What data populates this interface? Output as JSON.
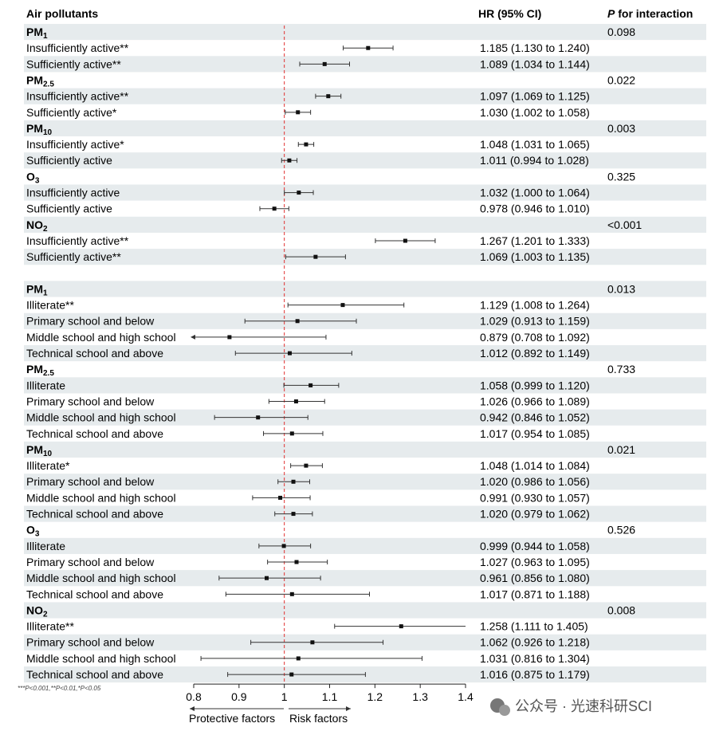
{
  "headers": {
    "pollutant": "Air pollutants",
    "hr": "HR (95% CI)",
    "pint_p": "P",
    "pint_rest": " for interaction"
  },
  "footnote": "***P<0.001,**P<0.01,*P<0.05",
  "axis_labels": {
    "protective": "Protective factors",
    "risk": "Risk factors"
  },
  "watermark": "公众号 · 光速科研SCI",
  "chart_data": {
    "type": "forest",
    "reference_line": 1,
    "xlim": [
      0.8,
      1.4
    ],
    "xticks": [
      0.8,
      0.9,
      1,
      1.1,
      1.2,
      1.3,
      1.4
    ],
    "xtick_labels": [
      "0.8",
      "0.9",
      "1",
      "1.1",
      "1.2",
      "1.3",
      "1.4"
    ],
    "rows": [
      {
        "kind": "group",
        "base": "PM",
        "sub": "1",
        "p": "0.098"
      },
      {
        "kind": "item",
        "label": "Insufficiently active**",
        "hr": 1.185,
        "lo": 1.13,
        "hi": 1.24,
        "text": "1.185 (1.130 to 1.240)"
      },
      {
        "kind": "item",
        "label": "Sufficiently active**",
        "hr": 1.089,
        "lo": 1.034,
        "hi": 1.144,
        "text": "1.089 (1.034 to 1.144)"
      },
      {
        "kind": "group",
        "base": "PM",
        "sub": "2.5",
        "p": "0.022"
      },
      {
        "kind": "item",
        "label": "Insufficiently active**",
        "hr": 1.097,
        "lo": 1.069,
        "hi": 1.125,
        "text": "1.097 (1.069 to 1.125)"
      },
      {
        "kind": "item",
        "label": "Sufficiently active*",
        "hr": 1.03,
        "lo": 1.002,
        "hi": 1.058,
        "text": "1.030 (1.002 to 1.058)"
      },
      {
        "kind": "group",
        "base": "PM",
        "sub": "10",
        "p": "0.003"
      },
      {
        "kind": "item",
        "label": "Insufficiently active*",
        "hr": 1.048,
        "lo": 1.031,
        "hi": 1.065,
        "text": "1.048 (1.031 to 1.065)"
      },
      {
        "kind": "item",
        "label": "Sufficiently active",
        "hr": 1.011,
        "lo": 0.994,
        "hi": 1.028,
        "text": "1.011 (0.994 to 1.028)"
      },
      {
        "kind": "group",
        "base": "O",
        "sub": "3",
        "p": "0.325"
      },
      {
        "kind": "item",
        "label": "Insufficiently active",
        "hr": 1.032,
        "lo": 1.0,
        "hi": 1.064,
        "text": "1.032 (1.000 to 1.064)"
      },
      {
        "kind": "item",
        "label": "Sufficiently active",
        "hr": 0.978,
        "lo": 0.946,
        "hi": 1.01,
        "text": "0.978 (0.946 to 1.010)"
      },
      {
        "kind": "group",
        "base": "NO",
        "sub": "2",
        "p": "<0.001"
      },
      {
        "kind": "item",
        "label": "Insufficiently active**",
        "hr": 1.267,
        "lo": 1.201,
        "hi": 1.333,
        "text": "1.267 (1.201 to 1.333)"
      },
      {
        "kind": "item",
        "label": "Sufficiently active**",
        "hr": 1.069,
        "lo": 1.003,
        "hi": 1.135,
        "text": "1.069 (1.003 to 1.135)"
      },
      {
        "kind": "blank"
      },
      {
        "kind": "group",
        "base": "PM",
        "sub": "1",
        "p": "0.013"
      },
      {
        "kind": "item",
        "label": "Illiterate**",
        "hr": 1.129,
        "lo": 1.008,
        "hi": 1.264,
        "text": "1.129 (1.008 to 1.264)"
      },
      {
        "kind": "item",
        "label": "Primary school and below",
        "hr": 1.029,
        "lo": 0.913,
        "hi": 1.159,
        "text": "1.029 (0.913 to 1.159)"
      },
      {
        "kind": "item",
        "label": "Middle school and high school",
        "hr": 0.879,
        "lo": 0.708,
        "hi": 1.092,
        "text": "0.879 (0.708 to 1.092)"
      },
      {
        "kind": "item",
        "label": "Technical school and above",
        "hr": 1.012,
        "lo": 0.892,
        "hi": 1.149,
        "text": "1.012 (0.892 to 1.149)"
      },
      {
        "kind": "group",
        "base": "PM",
        "sub": "2.5",
        "p": "0.733"
      },
      {
        "kind": "item",
        "label": "Illiterate",
        "hr": 1.058,
        "lo": 0.999,
        "hi": 1.12,
        "text": "1.058 (0.999 to 1.120)"
      },
      {
        "kind": "item",
        "label": "Primary school and below",
        "hr": 1.026,
        "lo": 0.966,
        "hi": 1.089,
        "text": "1.026 (0.966 to 1.089)"
      },
      {
        "kind": "item",
        "label": "Middle school and high school",
        "hr": 0.942,
        "lo": 0.846,
        "hi": 1.052,
        "text": "0.942 (0.846 to 1.052)"
      },
      {
        "kind": "item",
        "label": "Technical school and above",
        "hr": 1.017,
        "lo": 0.954,
        "hi": 1.085,
        "text": "1.017 (0.954 to 1.085)"
      },
      {
        "kind": "group",
        "base": "PM",
        "sub": "10",
        "p": "0.021"
      },
      {
        "kind": "item",
        "label": "Illiterate*",
        "hr": 1.048,
        "lo": 1.014,
        "hi": 1.084,
        "text": "1.048 (1.014 to 1.084)"
      },
      {
        "kind": "item",
        "label": "Primary school and below",
        "hr": 1.02,
        "lo": 0.986,
        "hi": 1.056,
        "text": "1.020 (0.986 to 1.056)"
      },
      {
        "kind": "item",
        "label": "Middle school and high school",
        "hr": 0.991,
        "lo": 0.93,
        "hi": 1.057,
        "text": "0.991 (0.930 to 1.057)"
      },
      {
        "kind": "item",
        "label": "Technical school and above",
        "hr": 1.02,
        "lo": 0.979,
        "hi": 1.062,
        "text": "1.020 (0.979 to 1.062)"
      },
      {
        "kind": "group",
        "base": "O",
        "sub": "3",
        "p": "0.526"
      },
      {
        "kind": "item",
        "label": "Illiterate",
        "hr": 0.999,
        "lo": 0.944,
        "hi": 1.058,
        "text": "0.999 (0.944 to 1.058)"
      },
      {
        "kind": "item",
        "label": "Primary school and below",
        "hr": 1.027,
        "lo": 0.963,
        "hi": 1.095,
        "text": "1.027 (0.963 to 1.095)"
      },
      {
        "kind": "item",
        "label": "Middle school and high school",
        "hr": 0.961,
        "lo": 0.856,
        "hi": 1.08,
        "text": "0.961 (0.856 to 1.080)"
      },
      {
        "kind": "item",
        "label": "Technical school and above",
        "hr": 1.017,
        "lo": 0.871,
        "hi": 1.188,
        "text": "1.017 (0.871 to 1.188)"
      },
      {
        "kind": "group",
        "base": "NO",
        "sub": "2",
        "p": "0.008"
      },
      {
        "kind": "item",
        "label": "Illiterate**",
        "hr": 1.258,
        "lo": 1.111,
        "hi": 1.405,
        "text": "1.258 (1.111 to 1.405)"
      },
      {
        "kind": "item",
        "label": "Primary school and below",
        "hr": 1.062,
        "lo": 0.926,
        "hi": 1.218,
        "text": "1.062 (0.926 to 1.218)"
      },
      {
        "kind": "item",
        "label": "Middle school and high school",
        "hr": 1.031,
        "lo": 0.816,
        "hi": 1.304,
        "text": "1.031 (0.816 to 1.304)"
      },
      {
        "kind": "item",
        "label": "Technical school and above",
        "hr": 1.016,
        "lo": 0.875,
        "hi": 1.179,
        "text": "1.016 (0.875 to 1.179)"
      }
    ]
  },
  "colors": {
    "stripe": "#e6ebed",
    "reference_line": "#e03030",
    "ink": "#111111",
    "ci_line": "#333333"
  }
}
